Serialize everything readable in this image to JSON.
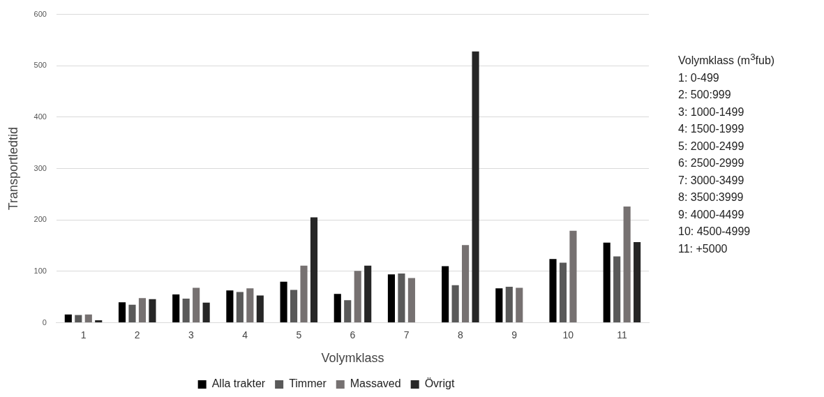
{
  "chart_data": {
    "type": "bar",
    "xlabel": "Volymklass",
    "ylabel": "Transportledtid",
    "categories": [
      "1",
      "2",
      "3",
      "4",
      "5",
      "6",
      "7",
      "8",
      "9",
      "10",
      "11"
    ],
    "series": [
      {
        "name": "Alla trakter",
        "color": "#000000",
        "values": [
          16,
          40,
          55,
          63,
          80,
          56,
          94,
          110,
          67,
          124,
          156
        ]
      },
      {
        "name": "Timmer",
        "color": "#595959",
        "values": [
          15,
          35,
          47,
          60,
          64,
          44,
          96,
          73,
          70,
          117,
          129
        ]
      },
      {
        "name": "Massaved",
        "color": "#767171",
        "values": [
          16,
          48,
          68,
          67,
          111,
          101,
          87,
          151,
          68,
          179,
          226
        ]
      },
      {
        "name": "Övrigt",
        "color": "#262626",
        "values": [
          5,
          46,
          39,
          53,
          205,
          111,
          null,
          528,
          null,
          null,
          157
        ]
      }
    ],
    "ylim": [
      0,
      600
    ],
    "yticks": [
      0,
      100,
      200,
      300,
      400,
      500,
      600
    ],
    "grid": "y",
    "legend": "bottom",
    "annotations": [
      "Volymklass (m$^{3}$fub)",
      "1: 0-499",
      "2: 500:999",
      "3: 1000-1499",
      "4: 1500-1999",
      "5: 2000-2499",
      "6: 2500-2999",
      "7: 3000-3499",
      "8: 3500:3999",
      "9: 4000-4499",
      "10: 4500-4999",
      "11: +5000"
    ]
  }
}
